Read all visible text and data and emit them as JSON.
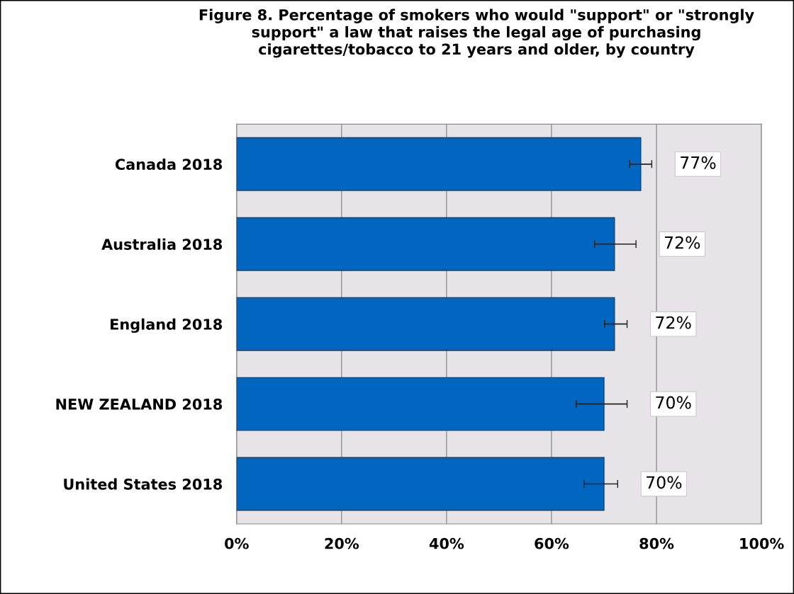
{
  "chart_data": {
    "type": "bar",
    "orientation": "horizontal",
    "title": "Figure 8. Percentage of smokers who would \"support\" or \"strongly\nsupport\" a law that raises the legal age of purchasing\ncigarettes/tobacco to 21 years and older, by country",
    "categories": [
      "Canada 2018",
      "Australia 2018",
      "England 2018",
      "NEW ZEALAND 2018",
      "United States 2018"
    ],
    "values": [
      77,
      72,
      72,
      70,
      70
    ],
    "errors": [
      [
        74.9,
        79.1
      ],
      [
        68.2,
        76.1
      ],
      [
        70.1,
        74.4
      ],
      [
        64.7,
        74.4
      ],
      [
        66.2,
        72.6
      ]
    ],
    "value_labels": [
      "77%",
      "72%",
      "72%",
      "70%",
      "70%"
    ],
    "color": "#0066c0",
    "xlim": [
      0,
      100
    ],
    "xticks": [
      {
        "value": 0,
        "label": "0%"
      },
      {
        "value": 20,
        "label": "20%"
      },
      {
        "value": 40,
        "label": "40%"
      },
      {
        "value": 60,
        "label": "60%"
      },
      {
        "value": 80,
        "label": "80%"
      },
      {
        "value": 100,
        "label": "100%"
      }
    ],
    "grid": "x"
  }
}
